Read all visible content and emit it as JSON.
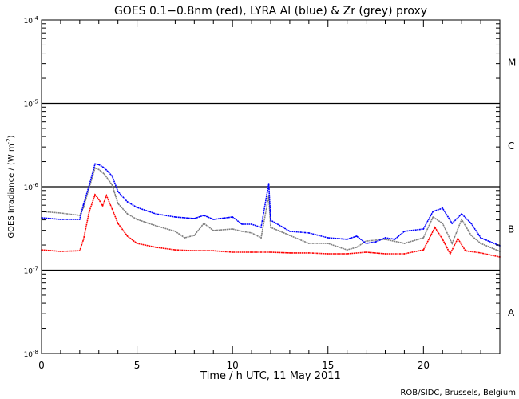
{
  "chart_data": {
    "type": "line",
    "title": "GOES 0.1−0.8nm (red), LYRA Al (blue) & Zr (grey) proxy",
    "xlabel": "Time / h UTC, 11 May 2011",
    "ylabel_main": "GOES Irradiance / (W m",
    "ylabel_exp": "-2",
    "ylabel_end": ")",
    "xlim": [
      0,
      24
    ],
    "ylim": [
      1e-08,
      0.0001
    ],
    "yscale": "log",
    "x_ticks": [
      0,
      5,
      10,
      15,
      20
    ],
    "x_tick_labels": [
      "0",
      "5",
      "10",
      "15",
      "20"
    ],
    "y_ticks": [
      1e-08,
      1e-07,
      1e-06,
      1e-05,
      0.0001
    ],
    "y_tick_labels": [
      {
        "base": "10",
        "exp": "-8"
      },
      {
        "base": "10",
        "exp": "-7"
      },
      {
        "base": "10",
        "exp": "-6"
      },
      {
        "base": "10",
        "exp": "-5"
      },
      {
        "base": "10",
        "exp": "-4"
      }
    ],
    "flare_classes": [
      {
        "label": "A",
        "low": 1e-08,
        "high": 1e-07
      },
      {
        "label": "B",
        "low": 1e-07,
        "high": 1e-06
      },
      {
        "label": "C",
        "low": 1e-06,
        "high": 1e-05
      },
      {
        "label": "M",
        "low": 1e-05,
        "high": 0.0001
      }
    ],
    "grid_lines": [
      1e-07,
      1e-06,
      1e-05
    ],
    "credit": "ROB/SIDC, Brussels, Belgium",
    "series": [
      {
        "name": "LYRA Zr proxy",
        "color": "#808080",
        "x": [
          0,
          1,
          2,
          2.2,
          2.5,
          2.8,
          3.0,
          3.3,
          3.7,
          4,
          4.5,
          5,
          6,
          7,
          7.5,
          8,
          8.5,
          9,
          10,
          10.5,
          11,
          11.5,
          11.9,
          12,
          12.5,
          13,
          14,
          15,
          16,
          16.5,
          17,
          18,
          19,
          20,
          20.5,
          21,
          21.5,
          22,
          22.5,
          23,
          24
        ],
        "y": [
          5.05e-07,
          4.83e-07,
          4.53e-07,
          5.64e-07,
          9.78e-07,
          1.68e-06,
          1.61e-06,
          1.41e-06,
          1.045e-06,
          6.3e-07,
          4.72e-07,
          4.05e-07,
          3.4e-07,
          2.92e-07,
          2.44e-07,
          2.61e-07,
          3.63e-07,
          2.98e-07,
          3.11e-07,
          2.92e-07,
          2.79e-07,
          2.44e-07,
          7.85e-07,
          3.25e-07,
          2.92e-07,
          2.61e-07,
          2.09e-07,
          2.09e-07,
          1.75e-07,
          1.88e-07,
          2.23e-07,
          2.34e-07,
          2.09e-07,
          2.44e-07,
          4.33e-07,
          3.63e-07,
          2.09e-07,
          4.05e-07,
          2.61e-07,
          2.09e-07,
          1.68e-07
        ]
      },
      {
        "name": "LYRA Al proxy",
        "color": "#0000ff",
        "x": [
          0,
          1,
          2,
          2.2,
          2.5,
          2.8,
          3.0,
          3.3,
          3.7,
          4,
          4.5,
          5,
          6,
          7,
          8,
          8.5,
          9,
          10,
          10.5,
          11,
          11.5,
          11.9,
          12,
          13,
          14,
          15,
          16,
          16.5,
          17,
          17.5,
          18,
          18.5,
          19,
          20,
          20.5,
          21,
          21.5,
          22,
          22.5,
          23,
          24
        ],
        "y": [
          4.23e-07,
          4.05e-07,
          4.05e-07,
          6.16e-07,
          1.045e-06,
          1.88e-06,
          1.84e-06,
          1.68e-06,
          1.34e-06,
          8.76e-07,
          6.58e-07,
          5.64e-07,
          4.72e-07,
          4.33e-07,
          4.14e-07,
          4.53e-07,
          4.05e-07,
          4.33e-07,
          3.55e-07,
          3.55e-07,
          3.25e-07,
          1.09e-06,
          3.96e-07,
          2.92e-07,
          2.79e-07,
          2.44e-07,
          2.34e-07,
          2.55e-07,
          2.09e-07,
          2.18e-07,
          2.44e-07,
          2.34e-07,
          2.92e-07,
          3.11e-07,
          5.05e-07,
          5.51e-07,
          3.63e-07,
          4.72e-07,
          3.63e-07,
          2.44e-07,
          1.96e-07
        ]
      },
      {
        "name": "GOES 0.1-0.8nm",
        "color": "#ff0000",
        "x": [
          0,
          1,
          2,
          2.2,
          2.5,
          2.8,
          3.0,
          3.2,
          3.4,
          3.7,
          4,
          4.5,
          5,
          6,
          7,
          8,
          9,
          10,
          11,
          12,
          13,
          14,
          15,
          16,
          17,
          18,
          19,
          20,
          20.6,
          21,
          21.4,
          21.8,
          22.2,
          23,
          24
        ],
        "y": [
          1.75e-07,
          1.68e-07,
          1.71e-07,
          2.34e-07,
          5.05e-07,
          8.02e-07,
          7.03e-07,
          5.89e-07,
          7.85e-07,
          5.4e-07,
          3.63e-07,
          2.55e-07,
          2.09e-07,
          1.88e-07,
          1.75e-07,
          1.71e-07,
          1.71e-07,
          1.64e-07,
          1.64e-07,
          1.64e-07,
          1.61e-07,
          1.61e-07,
          1.57e-07,
          1.57e-07,
          1.64e-07,
          1.57e-07,
          1.57e-07,
          1.75e-07,
          3.25e-07,
          2.34e-07,
          1.57e-07,
          2.39e-07,
          1.71e-07,
          1.61e-07,
          1.44e-07
        ]
      }
    ]
  }
}
